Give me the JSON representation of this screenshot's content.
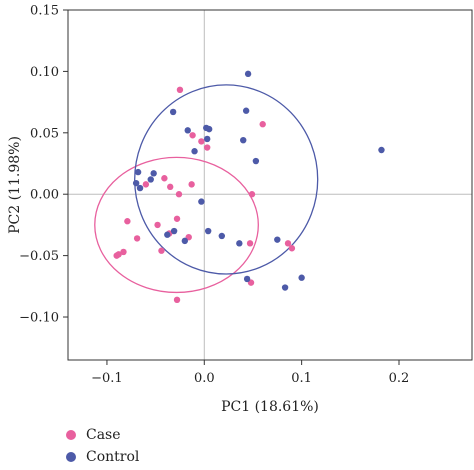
{
  "chart_data": {
    "type": "scatter",
    "xlabel": "PC1 (18.61%)",
    "ylabel": "PC2 (11.98%)",
    "xlim": [
      -0.14,
      0.275
    ],
    "ylim": [
      -0.135,
      0.15
    ],
    "x_ticks": [
      -0.1,
      0.0,
      0.1,
      0.2
    ],
    "x_tick_labels": [
      "−0.1",
      "0.0",
      "0.1",
      "0.2"
    ],
    "y_ticks": [
      -0.1,
      -0.05,
      0.0,
      0.05,
      0.1,
      0.15
    ],
    "y_tick_labels": [
      "−0.10",
      "−0.05",
      "0.00",
      "0.05",
      "0.10",
      "0.15"
    ],
    "reference_lines": {
      "x": 0,
      "y": 0
    },
    "legend_position": "bottom-left",
    "series": [
      {
        "name": "Case",
        "color": "#e8609e",
        "ellipse": {
          "cx": -0.0285,
          "cy": -0.025,
          "rx": 0.084,
          "ry": 0.055,
          "angle_deg": 0
        },
        "points": [
          [
            -0.025,
            0.085
          ],
          [
            -0.012,
            0.048
          ],
          [
            -0.003,
            0.043
          ],
          [
            0.003,
            0.038
          ],
          [
            -0.013,
            0.008
          ],
          [
            -0.041,
            0.013
          ],
          [
            -0.035,
            0.006
          ],
          [
            -0.026,
            0.0
          ],
          [
            -0.06,
            0.008
          ],
          [
            -0.079,
            -0.022
          ],
          [
            -0.069,
            -0.036
          ],
          [
            -0.048,
            -0.025
          ],
          [
            -0.036,
            -0.032
          ],
          [
            -0.028,
            -0.02
          ],
          [
            -0.016,
            -0.035
          ],
          [
            -0.044,
            -0.046
          ],
          [
            -0.088,
            -0.049
          ],
          [
            -0.083,
            -0.047
          ],
          [
            -0.09,
            -0.05
          ],
          [
            -0.028,
            -0.086
          ],
          [
            0.048,
            -0.072
          ],
          [
            0.06,
            0.057
          ],
          [
            0.049,
            0.0
          ],
          [
            0.047,
            -0.04
          ],
          [
            0.086,
            -0.04
          ],
          [
            0.09,
            -0.044
          ]
        ]
      },
      {
        "name": "Control",
        "color": "#4d5aa8",
        "ellipse": {
          "cx": 0.0225,
          "cy": 0.012,
          "rx": 0.094,
          "ry": 0.077,
          "angle_deg": 0
        },
        "points": [
          [
            0.045,
            0.098
          ],
          [
            -0.032,
            0.067
          ],
          [
            0.043,
            0.068
          ],
          [
            -0.017,
            0.052
          ],
          [
            0.002,
            0.054
          ],
          [
            0.005,
            0.053
          ],
          [
            0.003,
            0.045
          ],
          [
            0.04,
            0.044
          ],
          [
            0.053,
            0.027
          ],
          [
            -0.01,
            0.035
          ],
          [
            0.182,
            0.036
          ],
          [
            -0.07,
            0.009
          ],
          [
            -0.066,
            0.005
          ],
          [
            -0.055,
            0.012
          ],
          [
            -0.052,
            0.017
          ],
          [
            -0.068,
            0.018
          ],
          [
            -0.003,
            -0.006
          ],
          [
            -0.031,
            -0.03
          ],
          [
            -0.02,
            -0.038
          ],
          [
            0.004,
            -0.03
          ],
          [
            0.018,
            -0.034
          ],
          [
            0.036,
            -0.04
          ],
          [
            0.044,
            -0.069
          ],
          [
            0.075,
            -0.037
          ],
          [
            0.083,
            -0.076
          ],
          [
            0.1,
            -0.068
          ],
          [
            -0.038,
            -0.033
          ]
        ]
      }
    ]
  }
}
